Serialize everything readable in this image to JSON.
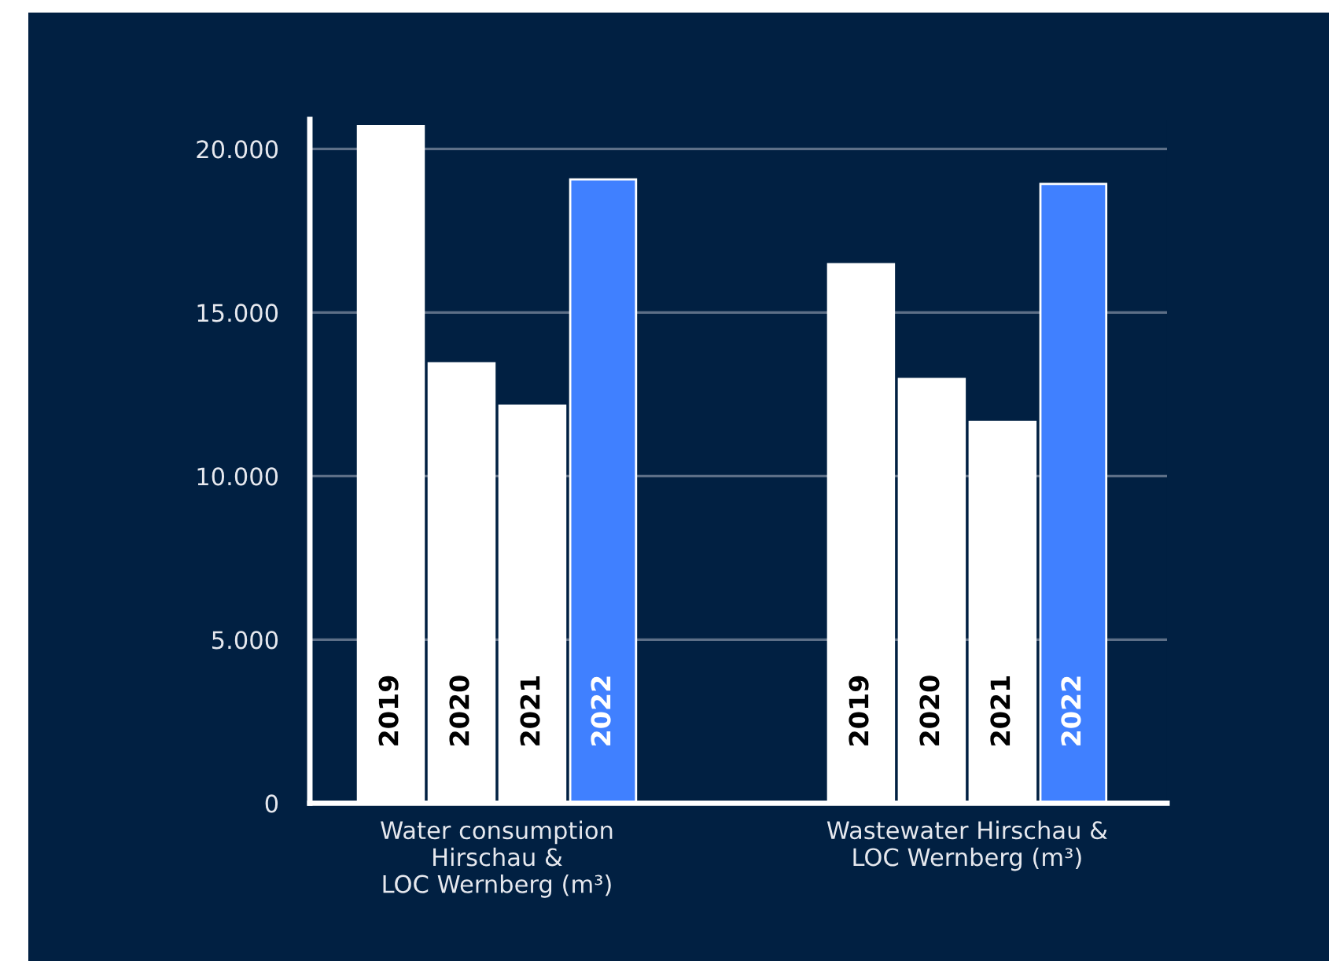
{
  "chart_data": {
    "type": "bar",
    "categories": [
      "Water consumption\nHirschau &\nLOC Wernberg (m³)",
      "Wastewater Hirschau &\nLOC Wernberg (m³)"
    ],
    "series": [
      {
        "name": "2019",
        "color": "#ffffff",
        "values": [
          20700,
          16480
        ]
      },
      {
        "name": "2020",
        "color": "#ffffff",
        "values": [
          13450,
          12970
        ]
      },
      {
        "name": "2021",
        "color": "#ffffff",
        "values": [
          12150,
          11660
        ]
      },
      {
        "name": "2022",
        "color": "#4080ff",
        "values": [
          19070,
          18930
        ]
      }
    ],
    "ylim": [
      0,
      20900
    ],
    "yticks": [
      0,
      {
        "value": 5000,
        "label": "5.000"
      },
      {
        "value": 10000,
        "label": "10.000"
      },
      {
        "value": 15000,
        "label": "15.000"
      },
      {
        "value": 20000,
        "label": "20.000"
      }
    ],
    "grid": "y",
    "legend": false
  }
}
